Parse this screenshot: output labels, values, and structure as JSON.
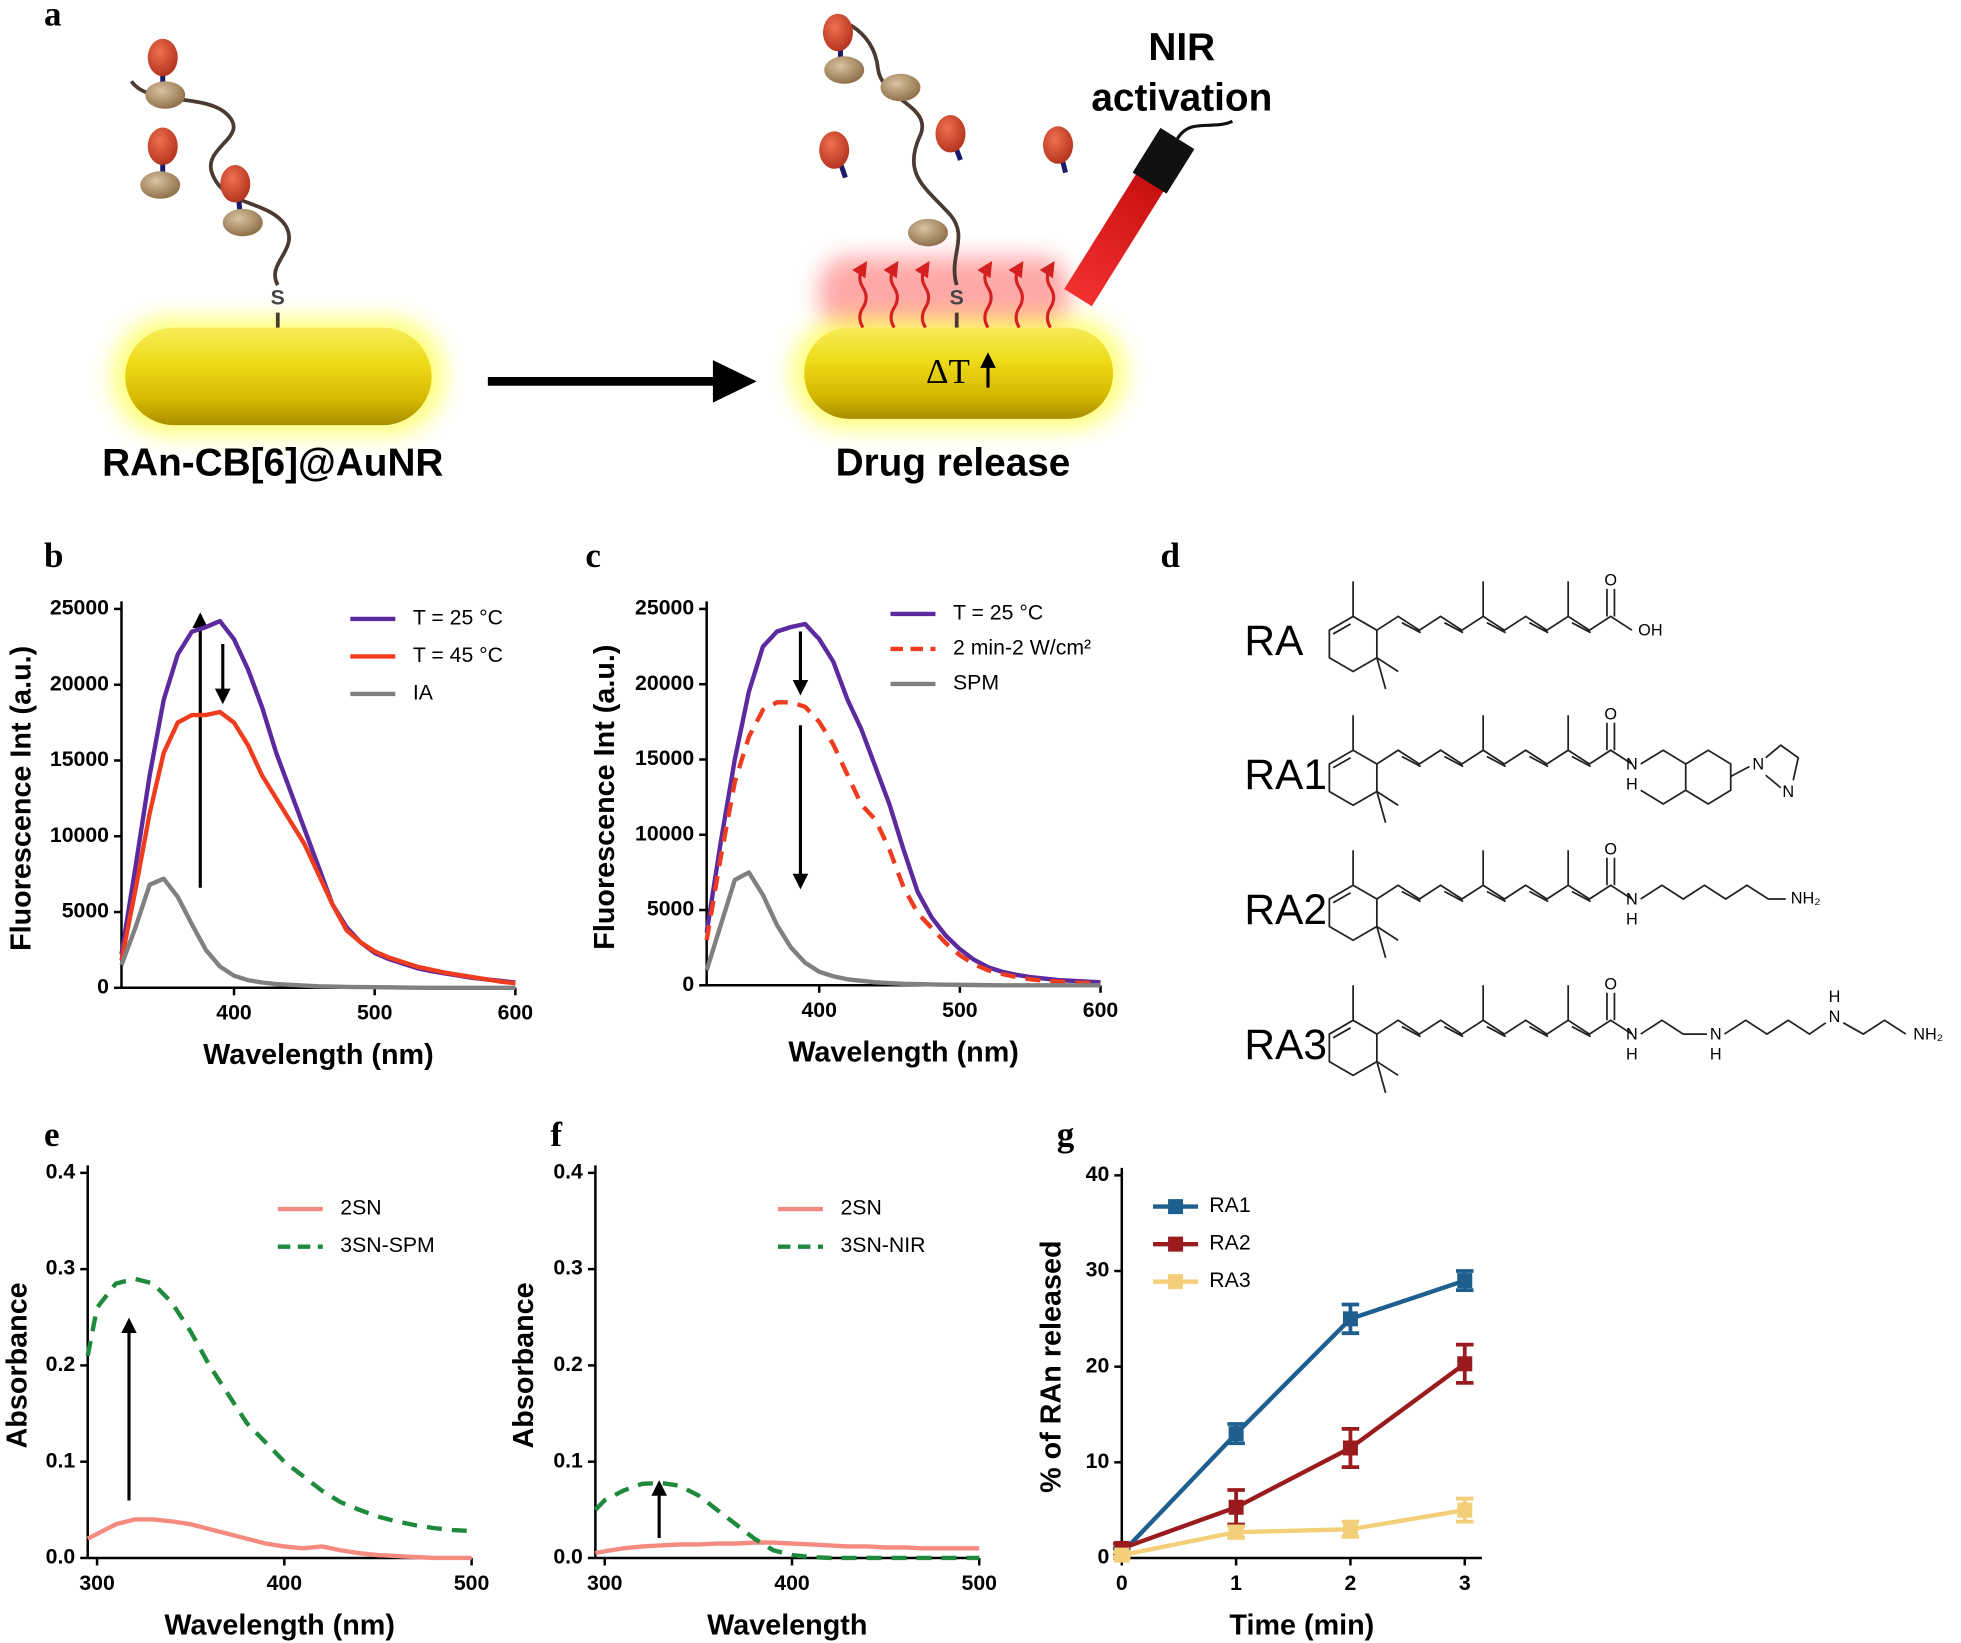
{
  "diagram": {
    "panel": "a",
    "left_label": "RAn-CB[6]@AuNR",
    "right_label": "Drug release",
    "nir_label": [
      "NIR",
      "activation"
    ],
    "sulfur": [
      "S",
      "S"
    ],
    "delta_t": "ΔT"
  },
  "structures": {
    "panel": "d",
    "items": [
      {
        "name": "RA",
        "atoms": [
          "O",
          "OH"
        ]
      },
      {
        "name": "RA1",
        "atoms": [
          "O",
          "N",
          "H",
          "N",
          "N"
        ]
      },
      {
        "name": "RA2",
        "atoms": [
          "O",
          "N",
          "H",
          "NH₂"
        ]
      },
      {
        "name": "RA3",
        "atoms": [
          "O",
          "N",
          "H",
          "N",
          "H",
          "H",
          "N",
          "NH₂"
        ]
      }
    ]
  },
  "chart_data": [
    {
      "type": "line",
      "panel": "b",
      "x_label": "Wavelength (nm)",
      "y_label": "Fluorescence Int (a.u.)",
      "x": [
        320,
        330,
        340,
        350,
        360,
        370,
        380,
        390,
        400,
        410,
        420,
        430,
        440,
        450,
        460,
        470,
        480,
        490,
        500,
        510,
        520,
        530,
        540,
        550,
        560,
        570,
        580,
        590,
        600
      ],
      "xlim": [
        320,
        600
      ],
      "xticks": [
        400,
        500,
        600
      ],
      "ylim": [
        0,
        25000
      ],
      "yticks": [
        0,
        5000,
        10000,
        15000,
        20000,
        25000
      ],
      "series": [
        {
          "name": "T = 25 °C",
          "color": "#5b2a9e",
          "values": [
            2200,
            8000,
            14000,
            19000,
            22000,
            23500,
            23800,
            24200,
            23000,
            21000,
            18500,
            15500,
            13000,
            10500,
            8000,
            5500,
            4000,
            3000,
            2300,
            1900,
            1600,
            1300,
            1100,
            950,
            800,
            650,
            550,
            450,
            350
          ]
        },
        {
          "name": "T = 45 °C",
          "color": "#f03c1e",
          "values": [
            1800,
            6500,
            11500,
            15500,
            17500,
            18000,
            18000,
            18200,
            17500,
            16000,
            14000,
            12500,
            11000,
            9500,
            7500,
            5500,
            3800,
            3000,
            2400,
            2000,
            1700,
            1400,
            1200,
            1000,
            850,
            700,
            550,
            400,
            300
          ]
        },
        {
          "name": "IA",
          "color": "#808080",
          "values": [
            1500,
            4000,
            6800,
            7200,
            6000,
            4200,
            2500,
            1400,
            800,
            500,
            350,
            250,
            200,
            150,
            100,
            80,
            60,
            50,
            40,
            30,
            20,
            10,
            0,
            0,
            0,
            0,
            0,
            0,
            0
          ]
        }
      ]
    },
    {
      "type": "line",
      "panel": "c",
      "x_label": "Wavelength (nm)",
      "y_label": "Fluorescence Int (a.u.)",
      "x": [
        320,
        330,
        340,
        350,
        360,
        370,
        380,
        390,
        400,
        410,
        420,
        430,
        440,
        450,
        460,
        470,
        480,
        490,
        500,
        510,
        520,
        530,
        540,
        550,
        560,
        570,
        580,
        590,
        600
      ],
      "xlim": [
        320,
        600
      ],
      "xticks": [
        400,
        500,
        600
      ],
      "ylim": [
        0,
        25000
      ],
      "yticks": [
        0,
        5000,
        10000,
        15000,
        20000,
        25000
      ],
      "series": [
        {
          "name": "T = 25 °C",
          "color": "#5b2a9e",
          "values": [
            3500,
            9500,
            15000,
            19500,
            22500,
            23500,
            23800,
            24000,
            23000,
            21500,
            19000,
            17000,
            14500,
            12000,
            9000,
            6200,
            4500,
            3300,
            2400,
            1700,
            1200,
            900,
            700,
            550,
            450,
            350,
            300,
            250,
            200
          ]
        },
        {
          "name": "2 min-2 W/cm²",
          "color": "#f03c1e",
          "dash": true,
          "values": [
            3000,
            8500,
            13500,
            16500,
            18300,
            18800,
            18800,
            18500,
            17500,
            16000,
            14000,
            12000,
            11000,
            9000,
            6500,
            4800,
            3800,
            2800,
            2000,
            1400,
            1000,
            750,
            550,
            400,
            300,
            250,
            200,
            150,
            100
          ]
        },
        {
          "name": "SPM",
          "color": "#808080",
          "values": [
            1000,
            4000,
            7000,
            7500,
            6000,
            4000,
            2500,
            1500,
            900,
            600,
            400,
            300,
            200,
            150,
            100,
            80,
            60,
            40,
            30,
            20,
            10,
            0,
            0,
            0,
            0,
            0,
            0,
            0,
            0
          ]
        }
      ]
    },
    {
      "type": "line",
      "panel": "e",
      "x_label": "Wavelength (nm)",
      "y_label": "Absorbance",
      "x": [
        295,
        300,
        310,
        320,
        330,
        340,
        350,
        360,
        370,
        380,
        390,
        400,
        410,
        420,
        430,
        440,
        450,
        460,
        470,
        480,
        490,
        500
      ],
      "xlim": [
        295,
        500
      ],
      "xticks": [
        300,
        400,
        500
      ],
      "ylim": [
        0,
        0.4
      ],
      "yticks": [
        {
          "value": 0,
          "label": "0.0"
        },
        0.1,
        0.2,
        0.3,
        0.4
      ],
      "series": [
        {
          "name": "2SN",
          "color": "#f48a80",
          "values": [
            0.02,
            0.025,
            0.035,
            0.04,
            0.04,
            0.038,
            0.035,
            0.03,
            0.025,
            0.02,
            0.015,
            0.012,
            0.01,
            0.012,
            0.008,
            0.005,
            0.003,
            0.002,
            0.001,
            0,
            0,
            0
          ]
        },
        {
          "name": "3SN-SPM",
          "color": "#1f8a3c",
          "dash": true,
          "values": [
            0.21,
            0.26,
            0.285,
            0.29,
            0.285,
            0.265,
            0.235,
            0.2,
            0.17,
            0.14,
            0.12,
            0.1,
            0.085,
            0.07,
            0.058,
            0.05,
            0.043,
            0.038,
            0.034,
            0.031,
            0.029,
            0.028
          ]
        }
      ]
    },
    {
      "type": "line",
      "panel": "f",
      "x_label": "Wavelength",
      "y_label": "Absorbance",
      "x": [
        295,
        300,
        310,
        320,
        330,
        340,
        350,
        360,
        370,
        380,
        390,
        400,
        410,
        420,
        430,
        440,
        450,
        460,
        470,
        480,
        490,
        500
      ],
      "xlim": [
        295,
        500
      ],
      "xticks": [
        300,
        400,
        500
      ],
      "ylim": [
        0,
        0.4
      ],
      "yticks": [
        {
          "value": 0,
          "label": "0.0"
        },
        0.1,
        0.2,
        0.3,
        0.4
      ],
      "series": [
        {
          "name": "2SN",
          "color": "#f48a80",
          "values": [
            0.005,
            0.007,
            0.01,
            0.012,
            0.013,
            0.014,
            0.014,
            0.015,
            0.015,
            0.016,
            0.016,
            0.015,
            0.014,
            0.013,
            0.012,
            0.012,
            0.011,
            0.011,
            0.01,
            0.01,
            0.01,
            0.01
          ]
        },
        {
          "name": "3SN-NIR",
          "color": "#1f8a3c",
          "dash": true,
          "values": [
            0.05,
            0.06,
            0.07,
            0.077,
            0.078,
            0.075,
            0.065,
            0.05,
            0.035,
            0.02,
            0.008,
            0.003,
            0.001,
            0,
            0,
            0,
            0,
            0,
            0,
            0,
            0,
            0
          ]
        }
      ]
    },
    {
      "type": "line",
      "panel": "g",
      "x_label": "Time (min)",
      "y_label": "% of RAn released",
      "x": [
        0,
        1,
        2,
        3
      ],
      "xlim": [
        0,
        3.15
      ],
      "xticks": [
        0,
        1,
        2,
        3
      ],
      "ylim": [
        0,
        40
      ],
      "yticks": [
        0,
        10,
        20,
        30,
        40
      ],
      "series": [
        {
          "name": "RA1",
          "color": "#1f5f8f",
          "marker": "square",
          "values": [
            0.5,
            13,
            25,
            29
          ],
          "errors": [
            0.5,
            1,
            1.5,
            1
          ]
        },
        {
          "name": "RA2",
          "color": "#9a1b1e",
          "marker": "square",
          "values": [
            1,
            5.3,
            11.5,
            20.3
          ],
          "errors": [
            0.5,
            1.8,
            2,
            2
          ]
        },
        {
          "name": "RA3",
          "color": "#f2cf78",
          "marker": "square",
          "values": [
            0.3,
            2.7,
            3,
            5
          ],
          "errors": [
            0.3,
            0.6,
            0.8,
            1.2
          ]
        }
      ]
    }
  ]
}
